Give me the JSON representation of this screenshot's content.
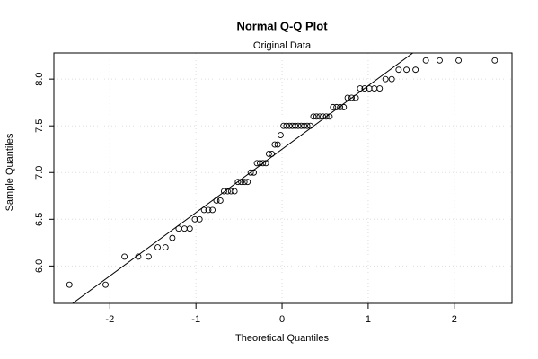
{
  "chart_data": {
    "type": "scatter",
    "title": "Normal Q-Q Plot",
    "subtitle": "Original Data",
    "x_label": "Theoretical Quantiles",
    "y_label": "Sample Quantiles",
    "color": "#000000",
    "grid": true,
    "reference_line": true,
    "xlim": [
      -2.65,
      2.67
    ],
    "ylim": [
      5.6,
      8.28
    ],
    "xticks": [
      -2,
      -1,
      0,
      1,
      2
    ],
    "yticks": [
      {
        "value": 6.0,
        "label": "6.0"
      },
      {
        "value": 6.5,
        "label": "6.5"
      },
      {
        "value": 7.0,
        "label": "7.0"
      },
      {
        "value": 7.5,
        "label": "7.5"
      },
      {
        "value": 8.0,
        "label": "8.0"
      }
    ],
    "x": [
      -2.47,
      -2.05,
      -1.83,
      -1.67,
      -1.55,
      -1.445,
      -1.354,
      -1.274,
      -1.201,
      -1.134,
      -1.072,
      -1.013,
      -0.958,
      -0.906,
      -0.856,
      -0.808,
      -0.762,
      -0.717,
      -0.674,
      -0.632,
      -0.592,
      -0.552,
      -0.513,
      -0.474,
      -0.437,
      -0.4,
      -0.364,
      -0.328,
      -0.292,
      -0.257,
      -0.222,
      -0.187,
      -0.153,
      -0.119,
      -0.085,
      -0.051,
      -0.017,
      0.017,
      0.051,
      0.085,
      0.119,
      0.153,
      0.187,
      0.222,
      0.257,
      0.292,
      0.328,
      0.364,
      0.4,
      0.437,
      0.474,
      0.513,
      0.552,
      0.592,
      0.632,
      0.674,
      0.717,
      0.762,
      0.808,
      0.856,
      0.906,
      0.958,
      1.013,
      1.072,
      1.134,
      1.201,
      1.274,
      1.354,
      1.445,
      1.55,
      1.67,
      1.83,
      2.05,
      2.47
    ],
    "values": [
      5.8,
      5.8,
      6.1,
      6.1,
      6.1,
      6.2,
      6.2,
      6.3,
      6.4,
      6.4,
      6.4,
      6.5,
      6.5,
      6.6,
      6.6,
      6.6,
      6.7,
      6.7,
      6.8,
      6.8,
      6.8,
      6.8,
      6.9,
      6.9,
      6.9,
      6.9,
      7.0,
      7.0,
      7.1,
      7.1,
      7.1,
      7.1,
      7.2,
      7.2,
      7.3,
      7.3,
      7.4,
      7.5,
      7.5,
      7.5,
      7.5,
      7.5,
      7.5,
      7.5,
      7.5,
      7.5,
      7.5,
      7.6,
      7.6,
      7.6,
      7.6,
      7.6,
      7.6,
      7.7,
      7.7,
      7.7,
      7.7,
      7.8,
      7.8,
      7.8,
      7.9,
      7.9,
      7.9,
      7.9,
      7.9,
      8.0,
      8.0,
      8.1,
      8.1,
      8.1,
      8.2,
      8.2,
      8.2,
      8.2
    ]
  }
}
